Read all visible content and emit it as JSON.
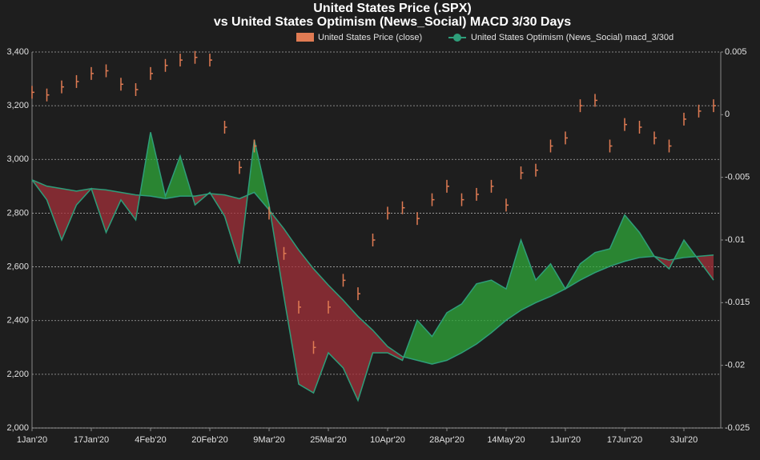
{
  "chart_data": {
    "type": "price-macd",
    "title": "United States Price (.SPX)",
    "subtitle": "vs United States Optimism (News_Social) MACD 3/30 Days",
    "categories": [
      "1Jan'20",
      null,
      null,
      null,
      "17Jan'20",
      null,
      null,
      null,
      "4Feb'20",
      null,
      null,
      null,
      "20Feb'20",
      null,
      null,
      null,
      "9Mar'20",
      null,
      null,
      null,
      "25Mar'20",
      null,
      null,
      null,
      "10Apr'20",
      null,
      null,
      null,
      "28Apr'20",
      null,
      null,
      null,
      "14May'20",
      null,
      null,
      null,
      "1Jun'20",
      null,
      null,
      null,
      "17Jun'20",
      null,
      null,
      null,
      "3Jul'20",
      null,
      null
    ],
    "series": [
      {
        "name": "United States Price (close)",
        "color": "#e07b53",
        "axis": "y",
        "values": [
          3250,
          3240,
          3270,
          3290,
          3320,
          3330,
          3280,
          3260,
          3320,
          3350,
          3370,
          3380,
          3370,
          3120,
          2970,
          3050,
          2800,
          2650,
          2450,
          2300,
          2450,
          2550,
          2500,
          2700,
          2800,
          2820,
          2780,
          2850,
          2900,
          2850,
          2870,
          2900,
          2830,
          2950,
          2960,
          3050,
          3080,
          3200,
          3220,
          3050,
          3130,
          3120,
          3080,
          3050,
          3150,
          3180,
          3200
        ]
      },
      {
        "name": "United States Optimism (News_Social) macd_3/30d",
        "color": "#2e9e7a",
        "axis": "y2",
        "values": [
          -0.0052,
          -0.0068,
          -0.01,
          -0.0072,
          -0.0059,
          -0.0094,
          -0.0068,
          -0.0084,
          -0.0014,
          -0.0065,
          -0.0033,
          -0.0072,
          -0.0062,
          -0.0081,
          -0.0119,
          -0.002,
          -0.0072,
          -0.0145,
          -0.0215,
          -0.0222,
          -0.019,
          -0.0202,
          -0.0228,
          -0.019,
          -0.019,
          -0.0196,
          -0.0164,
          -0.0177,
          -0.0158,
          -0.0151,
          -0.0135,
          -0.0132,
          -0.0139,
          -0.01,
          -0.0132,
          -0.0119,
          -0.0139,
          -0.0119,
          -0.011,
          -0.0107,
          -0.008,
          -0.0094,
          -0.0113,
          -0.0123,
          -0.01,
          -0.0116,
          -0.0132
        ],
        "band_values": [
          -0.0052,
          -0.0057,
          -0.0059,
          -0.0061,
          -0.0059,
          -0.006,
          -0.0062,
          -0.0064,
          -0.0065,
          -0.0067,
          -0.0065,
          -0.0065,
          -0.0063,
          -0.0064,
          -0.0067,
          -0.0062,
          -0.0076,
          -0.0091,
          -0.0108,
          -0.0123,
          -0.0136,
          -0.0148,
          -0.0161,
          -0.0172,
          -0.0185,
          -0.0193,
          -0.0196,
          -0.0199,
          -0.0196,
          -0.019,
          -0.0183,
          -0.0174,
          -0.0164,
          -0.0156,
          -0.015,
          -0.0145,
          -0.0139,
          -0.0132,
          -0.0126,
          -0.0121,
          -0.0117,
          -0.0114,
          -0.0113,
          -0.0116,
          -0.0114,
          -0.0113,
          -0.0112
        ],
        "above_color": "#2fa83a",
        "below_color": "#a3303a"
      }
    ],
    "ylim": [
      2000,
      3400
    ],
    "yticks": [
      {
        "value": 2000,
        "label": "2,000"
      },
      {
        "value": 2200,
        "label": "2,200"
      },
      {
        "value": 2400,
        "label": "2,400"
      },
      {
        "value": 2600,
        "label": "2,600"
      },
      {
        "value": 2800,
        "label": "2,800"
      },
      {
        "value": 3000,
        "label": "3,000"
      },
      {
        "value": 3200,
        "label": "3,200"
      },
      {
        "value": 3400,
        "label": "3,400"
      }
    ],
    "y2lim": [
      -0.025,
      0.005
    ],
    "y2ticks": [
      0.005,
      0,
      -0.005,
      -0.01,
      -0.015,
      -0.02,
      -0.025
    ],
    "grid": true
  }
}
